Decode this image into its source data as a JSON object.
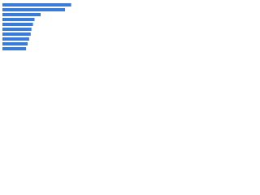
{
  "chart_data": {
    "type": "bar",
    "orientation": "horizontal",
    "categories": [
      null,
      null,
      null,
      null,
      null,
      null,
      null,
      null,
      null,
      null
    ],
    "values": [
      90,
      82,
      50,
      42,
      40,
      38,
      37,
      35,
      33,
      31
    ],
    "color": "#3a7bd5",
    "xlim": [
      0,
      100
    ]
  }
}
